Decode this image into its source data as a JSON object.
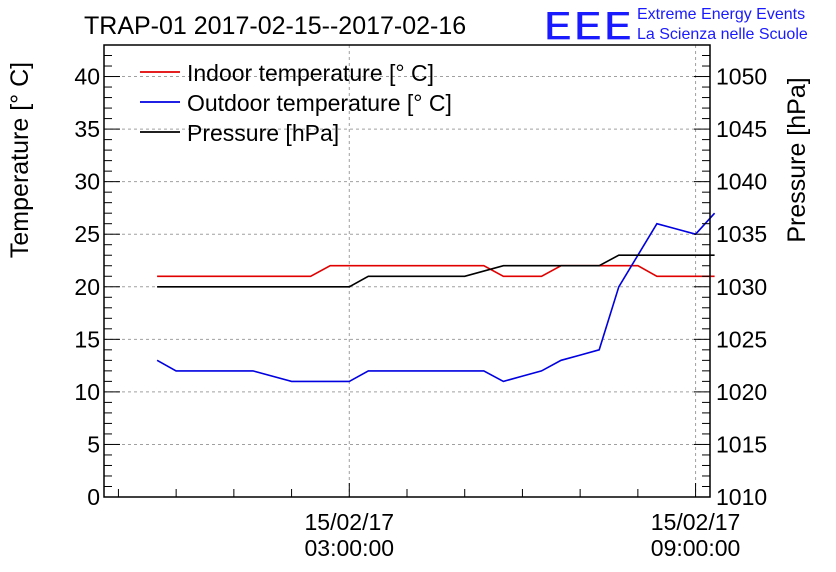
{
  "chart_data": {
    "type": "line",
    "title": "TRAP-01 2017-02-15--2017-02-16",
    "logo": {
      "text": "EEE",
      "line1": "Extreme Energy Events",
      "line2": "La Scienza nelle Scuole",
      "color": "#1a1aff"
    },
    "ylabel": "Temperature [° C]",
    "y2label": "Pressure [hPa]",
    "ylim": [
      0,
      43
    ],
    "y2lim": [
      1010,
      1053
    ],
    "yticks": [
      0,
      5,
      10,
      15,
      20,
      25,
      30,
      35,
      40
    ],
    "y2ticks": [
      1010,
      1015,
      1020,
      1025,
      1030,
      1035,
      1040,
      1045,
      1050
    ],
    "xlim_hours": [
      -1.25,
      9.25
    ],
    "xticks": [
      {
        "hour": 3,
        "date": "15/02/17",
        "time": "03:00:00"
      },
      {
        "hour": 9,
        "date": "15/02/17",
        "time": "09:00:00"
      }
    ],
    "grid": true,
    "legend_position": "top-left",
    "series": [
      {
        "name": "Indoor temperature [° C]",
        "axis": "left",
        "color": "#e00000",
        "points": [
          [
            -0.33,
            21
          ],
          [
            0.33,
            21
          ],
          [
            1,
            21
          ],
          [
            1.67,
            21
          ],
          [
            2,
            21
          ],
          [
            2.33,
            21
          ],
          [
            2.67,
            22
          ],
          [
            3,
            22
          ],
          [
            3.33,
            22
          ],
          [
            4,
            22
          ],
          [
            4.67,
            22
          ],
          [
            5,
            22
          ],
          [
            5.33,
            22
          ],
          [
            5.67,
            21
          ],
          [
            6,
            21
          ],
          [
            6.33,
            21
          ],
          [
            6.67,
            22
          ],
          [
            7,
            22
          ],
          [
            7.33,
            22
          ],
          [
            7.67,
            22
          ],
          [
            8,
            22
          ],
          [
            8.33,
            21
          ],
          [
            8.67,
            21
          ],
          [
            9,
            21
          ],
          [
            9.33,
            21
          ]
        ]
      },
      {
        "name": "Outdoor temperature [° C]",
        "axis": "left",
        "color": "#0000e0",
        "points": [
          [
            -0.33,
            13
          ],
          [
            0,
            12
          ],
          [
            0.67,
            12
          ],
          [
            1.33,
            12
          ],
          [
            2,
            11
          ],
          [
            2.67,
            11
          ],
          [
            3,
            11
          ],
          [
            3.33,
            12
          ],
          [
            4,
            12
          ],
          [
            4.67,
            12
          ],
          [
            5.33,
            12
          ],
          [
            5.67,
            11
          ],
          [
            6,
            11.5
          ],
          [
            6.33,
            12
          ],
          [
            6.67,
            13
          ],
          [
            7,
            13.5
          ],
          [
            7.33,
            14
          ],
          [
            7.67,
            20
          ],
          [
            8,
            23
          ],
          [
            8.33,
            26
          ],
          [
            8.67,
            25.5
          ],
          [
            9,
            25
          ],
          [
            9.33,
            27
          ]
        ]
      },
      {
        "name": "Pressure [hPa]",
        "axis": "right",
        "color": "#000000",
        "points": [
          [
            -0.33,
            1030
          ],
          [
            0.33,
            1030
          ],
          [
            1,
            1030
          ],
          [
            1.67,
            1030
          ],
          [
            2.33,
            1030
          ],
          [
            3,
            1030
          ],
          [
            3.33,
            1031
          ],
          [
            4,
            1031
          ],
          [
            4.67,
            1031
          ],
          [
            5,
            1031
          ],
          [
            5.67,
            1032
          ],
          [
            6.33,
            1032
          ],
          [
            6.67,
            1032
          ],
          [
            7,
            1032
          ],
          [
            7.33,
            1032
          ],
          [
            7.67,
            1033
          ],
          [
            8,
            1033
          ],
          [
            8.67,
            1033
          ],
          [
            9.33,
            1033
          ]
        ]
      }
    ]
  }
}
